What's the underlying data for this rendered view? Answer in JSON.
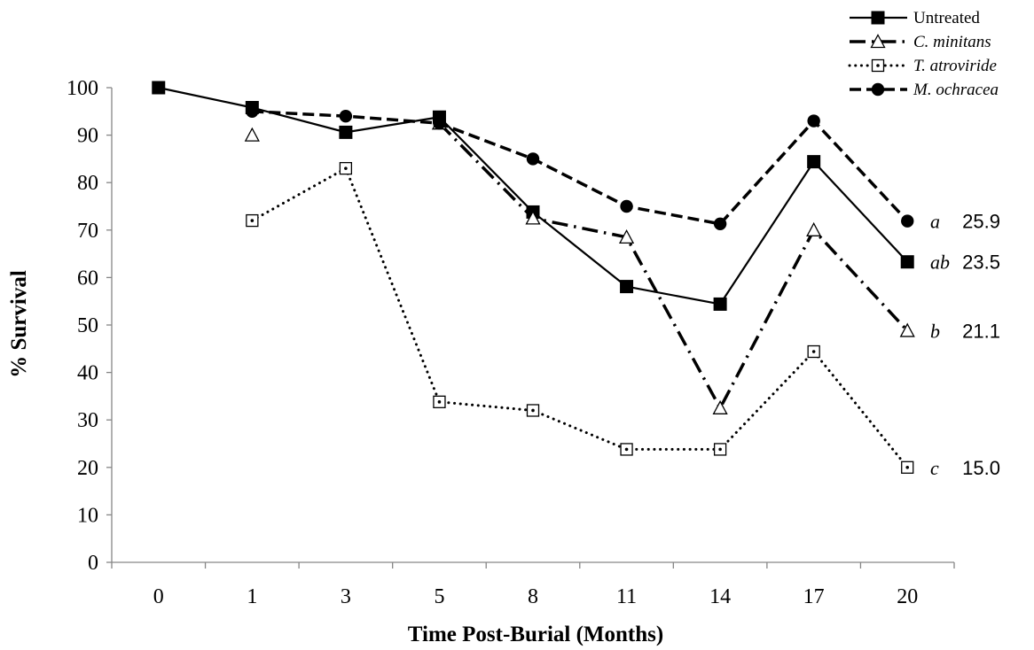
{
  "chart_data": {
    "type": "line",
    "xlabel": "Time Post-Burial (Months)",
    "ylabel": "% Survival",
    "categories": [
      "0",
      "1",
      "3",
      "5",
      "8",
      "11",
      "14",
      "17",
      "20"
    ],
    "ylim": [
      0,
      100
    ],
    "yticks": [
      0,
      10,
      20,
      30,
      40,
      50,
      60,
      70,
      80,
      90,
      100
    ],
    "grid": false,
    "legend_position": "top-right",
    "series": [
      {
        "name": "Untreated",
        "italic": false,
        "marker": "filled-square",
        "line": "solid",
        "values": [
          100,
          95.8,
          90.6,
          93.8,
          73.8,
          58.1,
          54.4,
          84.4,
          63.3
        ]
      },
      {
        "name": "C. minitans",
        "italic": true,
        "marker": "open-triangle",
        "line": "dash-dot",
        "values": [
          null,
          90.0,
          null,
          92.5,
          72.5,
          68.5,
          32.5,
          70.0,
          48.8
        ]
      },
      {
        "name": "T. atroviride",
        "italic": true,
        "marker": "open-square-dot",
        "line": "dotted",
        "values": [
          null,
          72.0,
          83.0,
          33.8,
          32.0,
          23.8,
          23.8,
          44.4,
          20.0
        ]
      },
      {
        "name": "M. ochracea",
        "italic": true,
        "marker": "filled-circle",
        "line": "dashed",
        "values": [
          null,
          95.0,
          94.0,
          92.5,
          85.0,
          75.0,
          71.3,
          93.0,
          71.9
        ]
      }
    ],
    "annotations": [
      {
        "series": "M. ochracea",
        "letter": "a",
        "value": "25.9"
      },
      {
        "series": "Untreated",
        "letter": "ab",
        "value": "23.5"
      },
      {
        "series": "C. minitans",
        "letter": "b",
        "value": "21.1"
      },
      {
        "series": "T. atroviride",
        "letter": "c",
        "value": "15.0"
      }
    ]
  }
}
